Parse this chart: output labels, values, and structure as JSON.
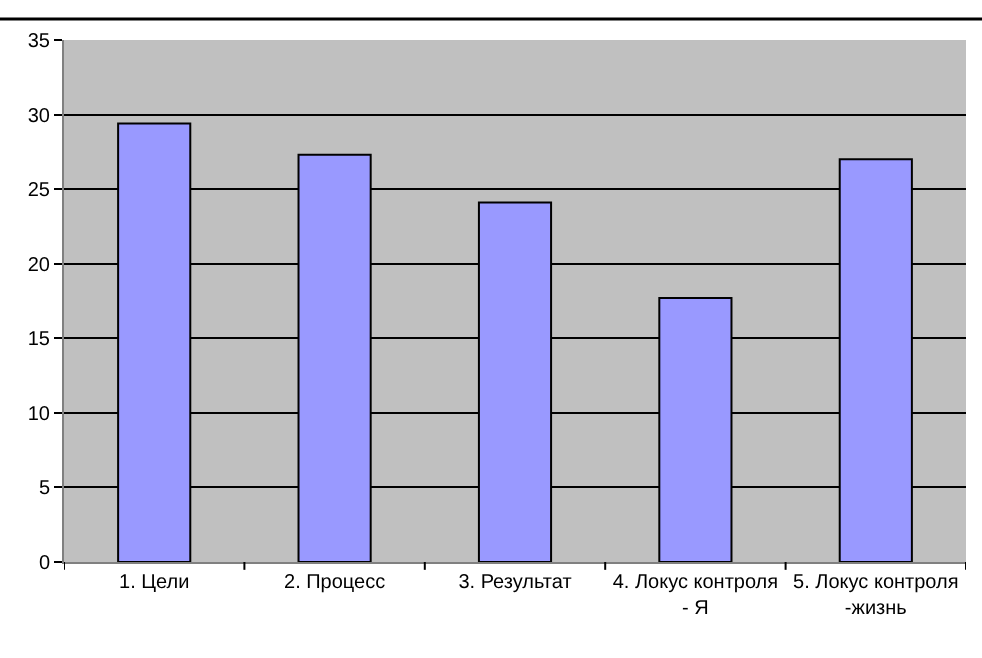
{
  "chart_data": {
    "type": "bar",
    "categories": [
      "1. Цели",
      "2. Процесс",
      "3. Результат",
      "4. Локус контроля - Я",
      "5. Локус контроля -жизнь"
    ],
    "values": [
      29.4,
      27.3,
      24.1,
      17.7,
      27.0
    ],
    "color": "#9999ff",
    "ylim": [
      0,
      35
    ],
    "yticks": [
      0,
      5,
      10,
      15,
      20,
      25,
      30,
      35
    ],
    "grid": "y",
    "legend": false
  }
}
